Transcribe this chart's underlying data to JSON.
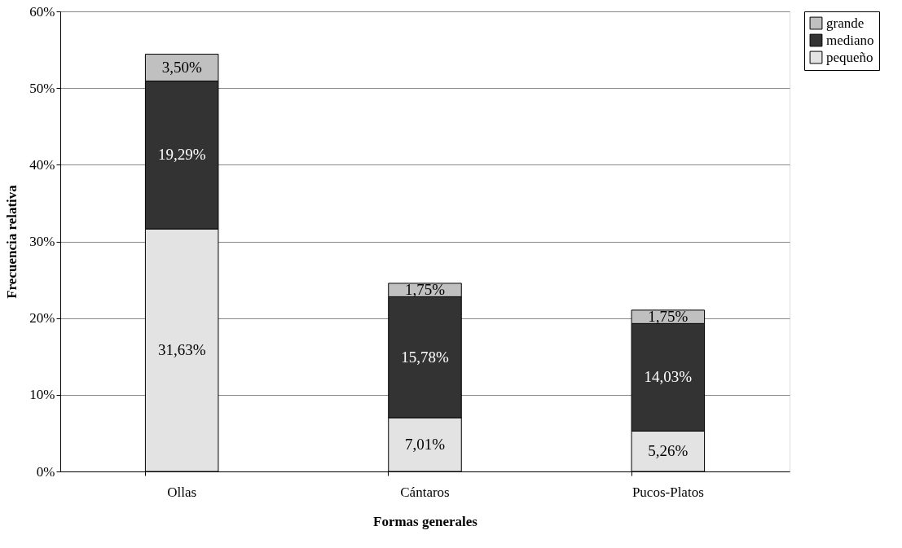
{
  "chart_data": {
    "type": "bar",
    "stacked": true,
    "xlabel": "Formas generales",
    "ylabel": "Frecuencia relativa",
    "categories": [
      "Ollas",
      "Cántaros",
      "Pucos-Platos"
    ],
    "series": [
      {
        "name": "pequeño",
        "color": "#e3e3e3",
        "values": [
          31.63,
          7.01,
          5.26
        ],
        "value_labels": [
          "31,63%",
          "7,01%",
          "5,26%"
        ]
      },
      {
        "name": "mediano",
        "color": "#333333",
        "values": [
          19.29,
          15.78,
          14.03
        ],
        "value_labels": [
          "19,29%",
          "15,78%",
          "14,03%"
        ]
      },
      {
        "name": "grande",
        "color": "#c0c0c0",
        "values": [
          3.5,
          1.75,
          1.75
        ],
        "value_labels": [
          "3,50%",
          "1,75%",
          "1,75%"
        ]
      }
    ],
    "ylim": [
      0,
      60
    ],
    "yticks": [
      {
        "value": 0,
        "label": "0%"
      },
      {
        "value": 10,
        "label": "10%"
      },
      {
        "value": 20,
        "label": "20%"
      },
      {
        "value": 30,
        "label": "30%"
      },
      {
        "value": 40,
        "label": "40%"
      },
      {
        "value": 50,
        "label": "50%"
      },
      {
        "value": 60,
        "label": "60%"
      }
    ],
    "grid": "y",
    "legend": "right"
  }
}
